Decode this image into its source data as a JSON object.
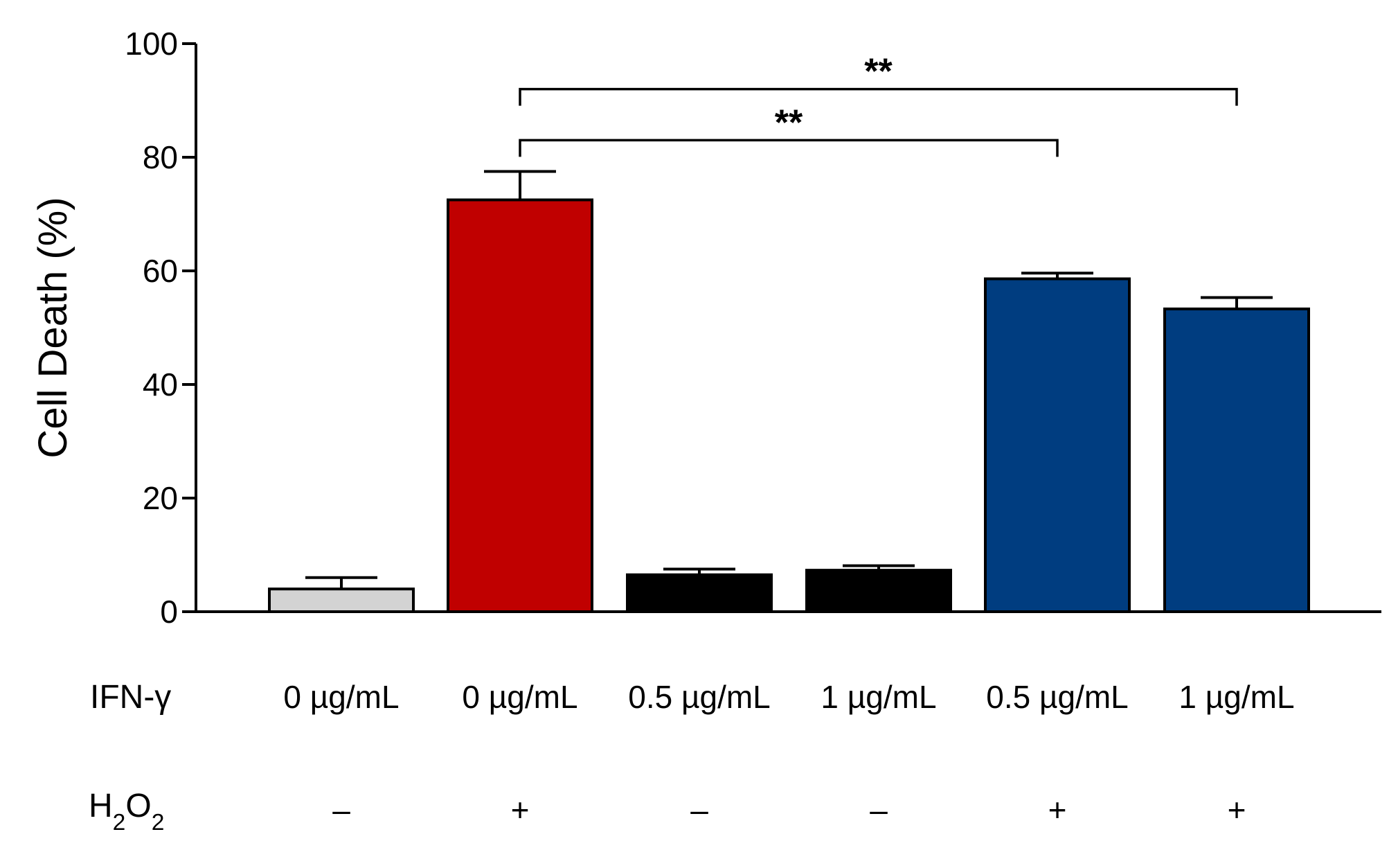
{
  "chart_data": {
    "type": "bar",
    "title": "",
    "xlabel": "",
    "ylabel": "Cell Death (%)",
    "ylim": [
      0,
      100
    ],
    "yticks": [
      "0",
      "20",
      "40",
      "60",
      "80",
      "100"
    ],
    "grid": false,
    "legend": "none",
    "row_labels": {
      "ifn_html": "IFN-&gamma;",
      "h2o2_html": "H<tspan baseline-shift=\"sub\" font-size=\"70%\">2</tspan>O<tspan baseline-shift=\"sub\" font-size=\"70%\">2</tspan>"
    },
    "categories": [
      {
        "ifn": "0 µg/mL",
        "h2o2": "–"
      },
      {
        "ifn": "0 µg/mL",
        "h2o2": "+"
      },
      {
        "ifn": "0.5 µg/mL",
        "h2o2": "–"
      },
      {
        "ifn": "1 µg/mL",
        "h2o2": "–"
      },
      {
        "ifn": "0.5 µg/mL",
        "h2o2": "+"
      },
      {
        "ifn": "1 µg/mL",
        "h2o2": "+"
      }
    ],
    "values": [
      4,
      72.5,
      6.5,
      7.3,
      58.6,
      53.3
    ],
    "errors": [
      2,
      5,
      1,
      0.8,
      1,
      2
    ],
    "colors": [
      "#d3d3d3",
      "#c00000",
      "#000000",
      "#000000",
      "#003d80",
      "#003d80"
    ],
    "significance": [
      {
        "from": 1,
        "to": 5,
        "label": "**",
        "y": 92
      },
      {
        "from": 1,
        "to": 4,
        "label": "**",
        "y": 83
      }
    ]
  }
}
